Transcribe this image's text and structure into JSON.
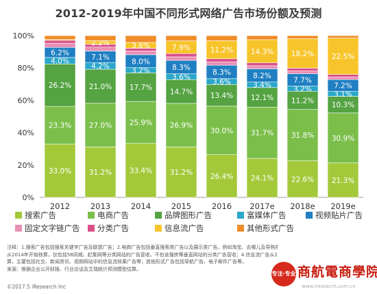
{
  "chart_data": {
    "type": "bar",
    "stacked": true,
    "title": "2012-2019年中国不同形式网络广告市场份额及预测",
    "xlabel": "",
    "ylabel": "",
    "categories": [
      "2012",
      "2013",
      "2014",
      "2015",
      "2016",
      "2017e",
      "2018e",
      "2019e"
    ],
    "ylim": [
      0,
      100
    ],
    "yticks": [
      "0%",
      "20%",
      "40%",
      "60%",
      "80%",
      "100%"
    ],
    "series": [
      {
        "name": "搜索广告",
        "color": "#a3c93a",
        "labelColor": "#ffffff",
        "values": [
          33.0,
          31.2,
          33.4,
          31.2,
          26.4,
          24.1,
          22.6,
          21.3
        ],
        "labels": [
          "33.0%",
          "31.2%",
          "33.4%",
          "31.2%",
          "26.4%",
          "24.1%",
          "22.6%",
          "21.3%"
        ]
      },
      {
        "name": "电商广告",
        "color": "#7bbf4a",
        "labelColor": "#ffffff",
        "values": [
          23.3,
          27.0,
          25.9,
          26.9,
          30.0,
          31.7,
          31.8,
          30.9
        ],
        "labels": [
          "23.3%",
          "27.0%",
          "25.9%",
          "26.9%",
          "30.0%",
          "31.7%",
          "31.8%",
          "30.9%"
        ]
      },
      {
        "name": "品牌图形广告",
        "color": "#55a342",
        "labelColor": "#ffffff",
        "values": [
          26.2,
          21.0,
          17.7,
          14.7,
          13.4,
          12.1,
          11.2,
          10.3
        ],
        "labels": [
          "26.2%",
          "21.0%",
          "17.7%",
          "14.7%",
          "13.4%",
          "12.1%",
          "11.2%",
          "10.3%"
        ]
      },
      {
        "name": "富媒体广告",
        "color": "#2aa7c9",
        "labelColor": "#ffffff",
        "values": [
          4.0,
          4.2,
          3.2,
          3.6,
          3.6,
          3.4,
          3.2,
          3.1
        ],
        "labels": [
          "4.0%",
          "4.2%",
          "3.2%",
          "3.6%",
          "3.6%",
          "3.4%",
          "3.2%",
          "3.1%"
        ]
      },
      {
        "name": "视频贴片广告",
        "color": "#1f7fc2",
        "labelColor": "#ffffff",
        "values": [
          6.2,
          7.1,
          8.0,
          8.3,
          8.3,
          8.2,
          7.7,
          7.2
        ],
        "labels": [
          "6.2%",
          "7.1%",
          "8.0%",
          "8.3%",
          "8.3%",
          "8.2%",
          "7.7%",
          "7.2%"
        ]
      },
      {
        "name": "固定文字链广告",
        "color": "#e98fb4",
        "labelColor": "#ffffff",
        "values": [
          2.6,
          2.4,
          2.3,
          2.2,
          2.1,
          1.9,
          1.8,
          1.7
        ],
        "labels": [
          "",
          "",
          "",
          "",
          "",
          "",
          "",
          ""
        ]
      },
      {
        "name": "分类广告",
        "color": "#d94f8a",
        "labelColor": "#ffffff",
        "values": [
          1.8,
          1.8,
          1.7,
          2.0,
          1.9,
          1.8,
          1.6,
          1.5
        ],
        "labels": [
          "",
          "",
          "",
          "",
          "",
          "",
          "",
          ""
        ]
      },
      {
        "name": "信息流广告",
        "color": "#f7c52b",
        "labelColor": "#ffffff",
        "values": [
          0.5,
          2.2,
          3.6,
          7.9,
          11.2,
          14.3,
          18.2,
          22.5
        ],
        "labels": [
          "",
          "2.2%",
          "3.6%",
          "7.9%",
          "11.2%",
          "14.3%",
          "18.2%",
          "22.5%"
        ]
      },
      {
        "name": "其他形式广告",
        "color": "#f08c2a",
        "labelColor": "#ffffff",
        "values": [
          2.4,
          3.1,
          4.2,
          3.2,
          3.1,
          2.5,
          1.9,
          1.5
        ],
        "labels": [
          "",
          "",
          "",
          "",
          "",
          "",
          "",
          ""
        ]
      }
    ],
    "legend_position": "bottom",
    "grid": false
  },
  "notes": [
    "注释：1.搜索广告包括搜索关键字广告及联盟广告；2.电商广告包括垂直搜索类广告以及展示类广告，例如淘宝、去哪儿及导购类网站；3.分类广告",
    "从2014年开始核算，仅包括58同城、赶集网等分类网站的广告营收，不包含搜房等垂直网站的分类广告营收；4.信息流广告从2016年开始独立核",
    "算，主要包括社交、新闻资讯、视频网站中的信息流效果广告等；其他形式广告包括导航广告、电子邮件广告等。",
    "来源：根据企业公开财报、行业访谈及艾瑞统计预测模型估算。"
  ],
  "copyright": "©2017.5 iResearch Inc",
  "logo": {
    "seal": "专注·专业",
    "name": "商航電商學院"
  },
  "watermark": "www.iresearch.com.cn"
}
